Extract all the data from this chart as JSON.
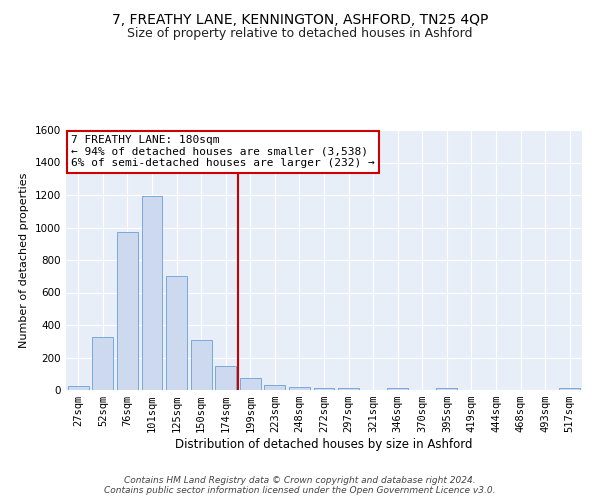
{
  "title1": "7, FREATHY LANE, KENNINGTON, ASHFORD, TN25 4QP",
  "title2": "Size of property relative to detached houses in Ashford",
  "xlabel": "Distribution of detached houses by size in Ashford",
  "ylabel": "Number of detached properties",
  "categories": [
    "27sqm",
    "52sqm",
    "76sqm",
    "101sqm",
    "125sqm",
    "150sqm",
    "174sqm",
    "199sqm",
    "223sqm",
    "248sqm",
    "272sqm",
    "297sqm",
    "321sqm",
    "346sqm",
    "370sqm",
    "395sqm",
    "419sqm",
    "444sqm",
    "468sqm",
    "493sqm",
    "517sqm"
  ],
  "values": [
    25,
    325,
    970,
    1195,
    700,
    305,
    150,
    75,
    30,
    20,
    10,
    10,
    0,
    10,
    0,
    15,
    0,
    0,
    0,
    0,
    10
  ],
  "bar_color": "#ccd9ee",
  "bar_edge_color": "#6b9fd4",
  "vline_x": 6.5,
  "vline_color": "#cc0000",
  "annotation_text": "7 FREATHY LANE: 180sqm\n← 94% of detached houses are smaller (3,538)\n6% of semi-detached houses are larger (232) →",
  "annotation_box_color": "#ffffff",
  "annotation_box_edge": "#cc0000",
  "ylim": [
    0,
    1600
  ],
  "yticks": [
    0,
    200,
    400,
    600,
    800,
    1000,
    1200,
    1400,
    1600
  ],
  "bg_color": "#e8eef8",
  "footer_text": "Contains HM Land Registry data © Crown copyright and database right 2024.\nContains public sector information licensed under the Open Government Licence v3.0.",
  "title1_fontsize": 10,
  "title2_fontsize": 9,
  "xlabel_fontsize": 8.5,
  "ylabel_fontsize": 8,
  "tick_fontsize": 7.5,
  "annotation_fontsize": 8,
  "footer_fontsize": 6.5
}
